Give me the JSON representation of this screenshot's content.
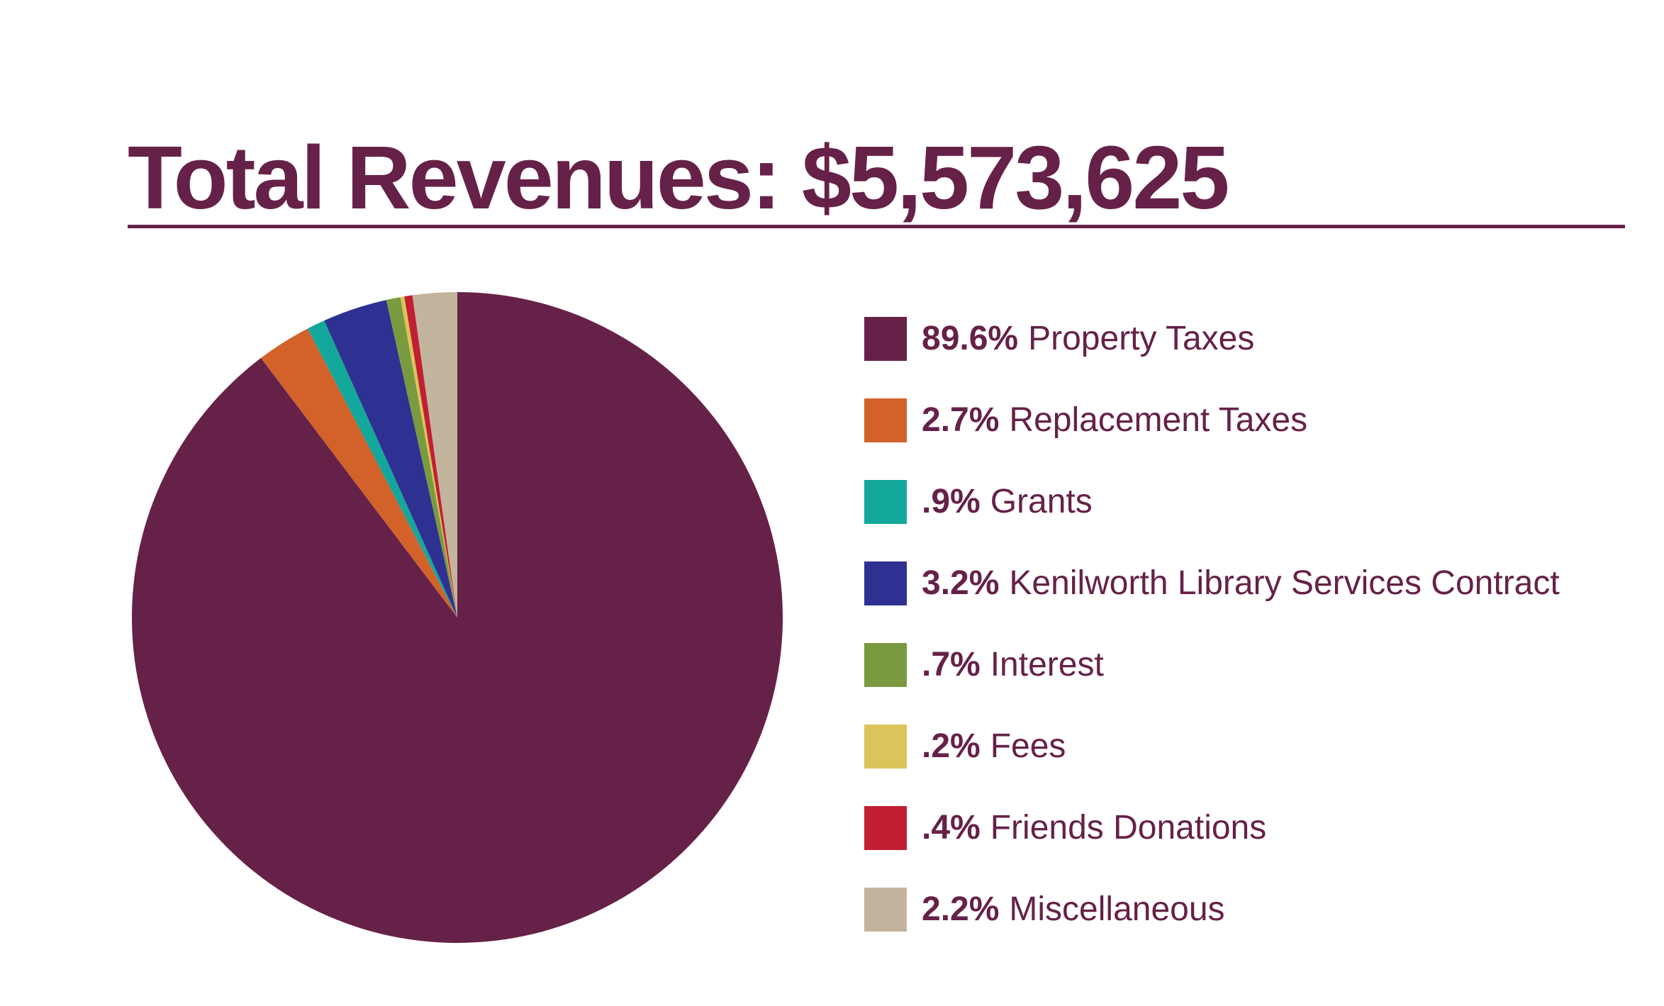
{
  "title": "Total Revenues: $5,573,625",
  "colors": {
    "text": "#662148",
    "underline": "#662148",
    "background": "#FFFFFF"
  },
  "chart_data": {
    "type": "pie",
    "title": "Total Revenues: $5,573,625",
    "total_revenues": "$5,573,625",
    "start_angle_deg": 0,
    "direction": "clockwise",
    "legend_position": "right",
    "slices": [
      {
        "label": "Property Taxes",
        "pct_label": "89.6%",
        "value": 89.6,
        "color": "#662148"
      },
      {
        "label": "Replacement Taxes",
        "pct_label": "2.7%",
        "value": 2.7,
        "color": "#D2622A"
      },
      {
        "label": "Grants",
        "pct_label": ".9%",
        "value": 0.9,
        "color": "#14A79B"
      },
      {
        "label": "Kenilworth Library Services Contract",
        "pct_label": "3.2%",
        "value": 3.2,
        "color": "#2E3191"
      },
      {
        "label": "Interest",
        "pct_label": ".7%",
        "value": 0.7,
        "color": "#7A9A40"
      },
      {
        "label": "Fees",
        "pct_label": ".2%",
        "value": 0.2,
        "color": "#DBC45A"
      },
      {
        "label": "Friends Donations",
        "pct_label": ".4%",
        "value": 0.4,
        "color": "#C11F32"
      },
      {
        "label": "Miscellaneous",
        "pct_label": "2.2%",
        "value": 2.2,
        "color": "#C3B49D"
      }
    ]
  }
}
